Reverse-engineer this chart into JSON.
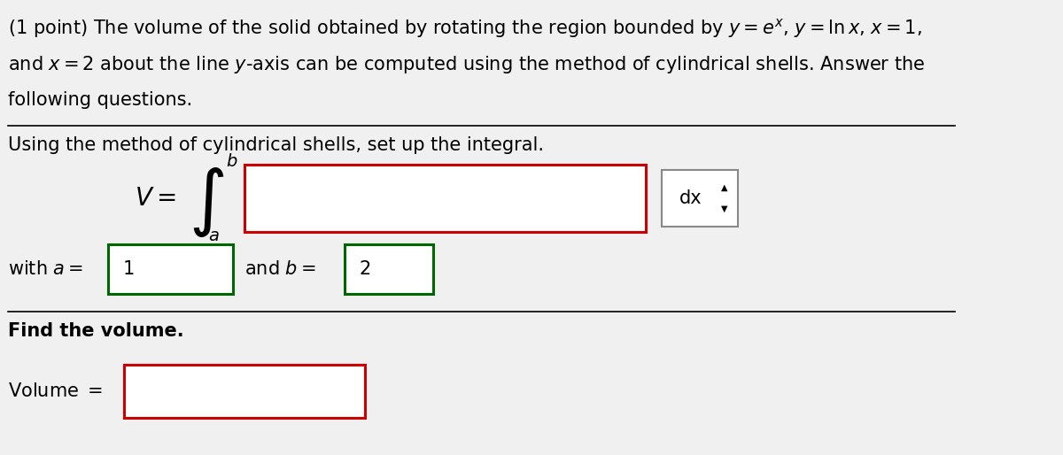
{
  "bg_color": "#f0f0f0",
  "white": "#ffffff",
  "title_text": "(1 point) The volume of the solid obtained by rotating the region bounded by $y = e^x$, $y = \\ln x$, $x = 1$,",
  "title_line2": "and $x = 2$ about the line $y$-axis can be computed using the method of cylindrical shells. Answer the",
  "title_line3": "following questions.",
  "section1_text": "Using the method of cylindrical shells, set up the integral.",
  "integral_V": "$V = $",
  "integral_b": "$b$",
  "integral_a": "$a$",
  "dx_text": "dx",
  "with_a_text": "with $a = $",
  "a_value": "1",
  "and_b_text": "and $b = $",
  "b_value": "2",
  "section2_text": "Find the volume.",
  "volume_label": "Volume $=$",
  "red_border": "#cc0000",
  "green_border": "#006600",
  "gray_border": "#888888",
  "font_size_main": 15,
  "font_size_math": 15
}
